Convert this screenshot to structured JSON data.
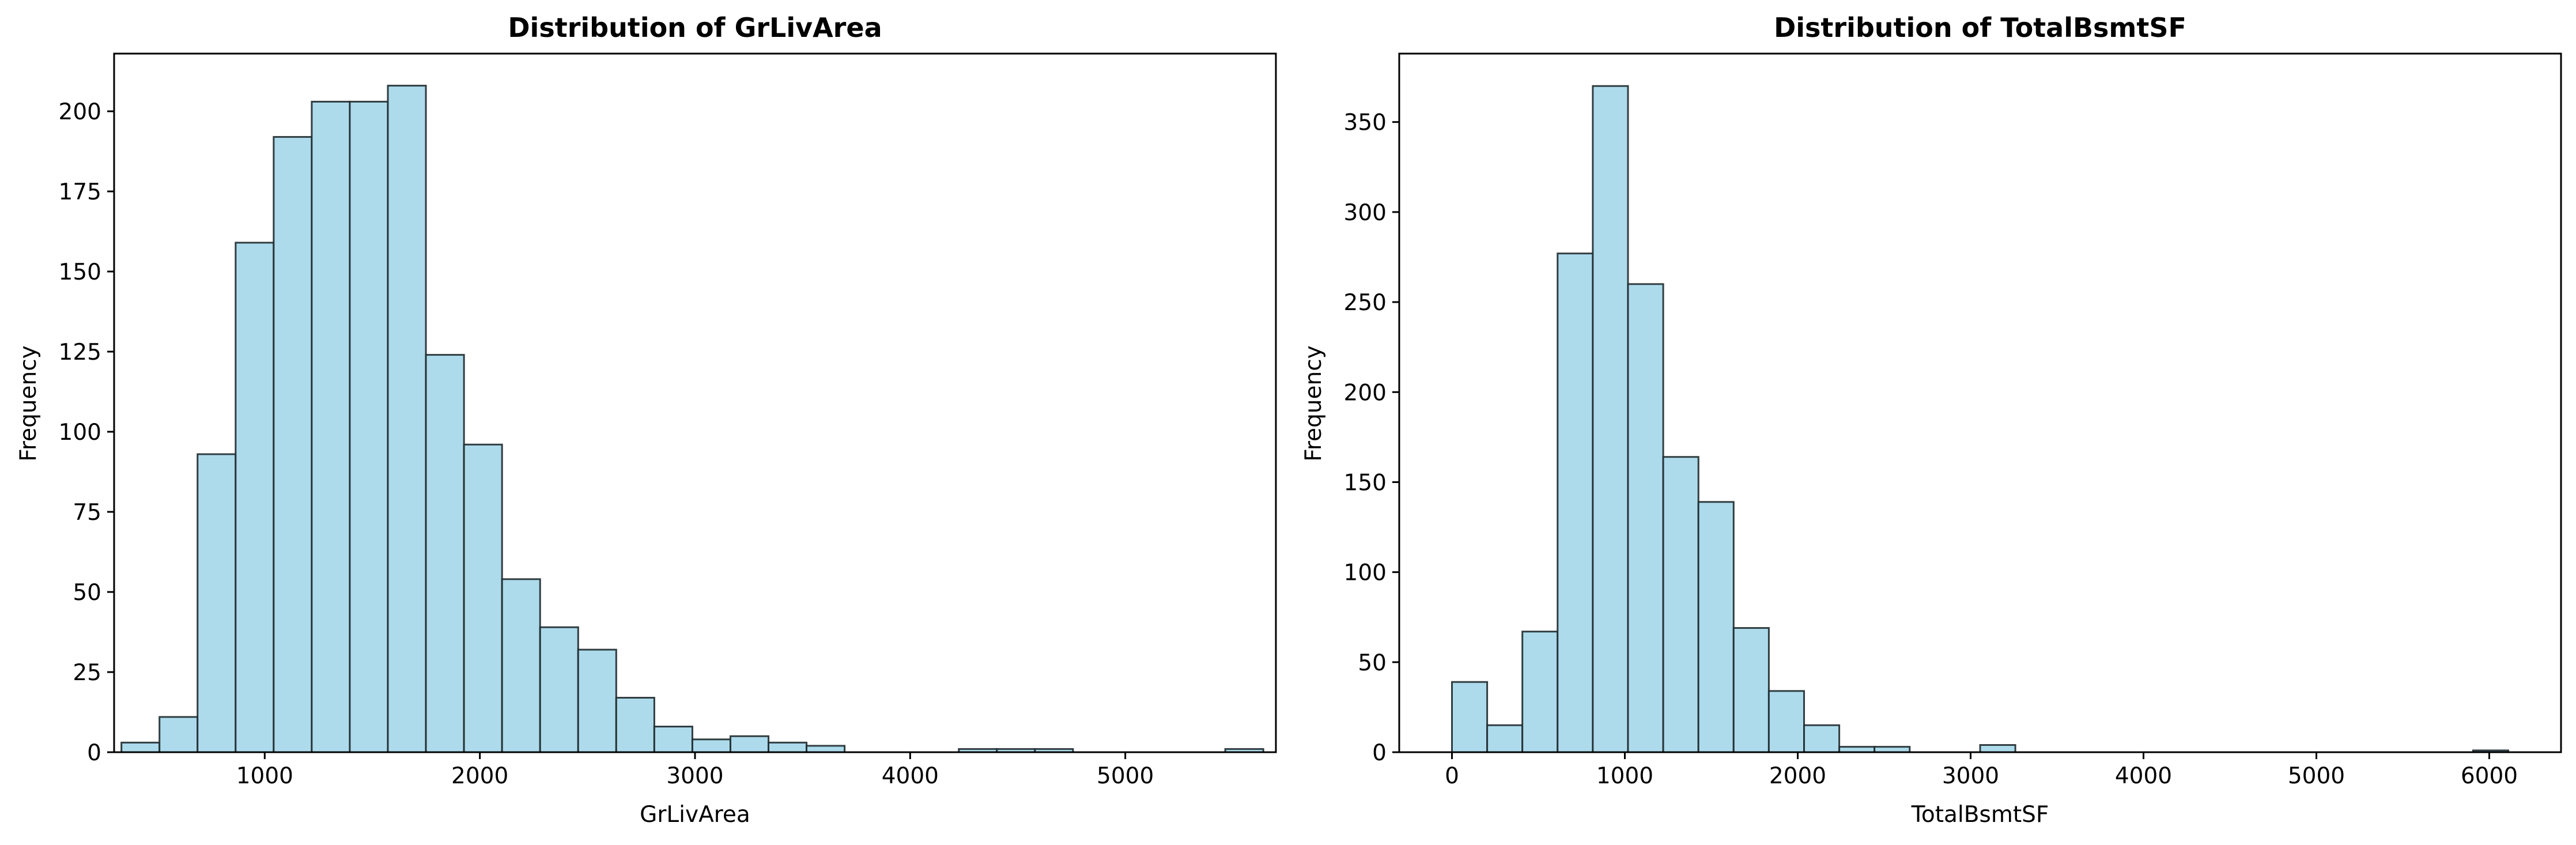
{
  "colors": {
    "bar_fill": "#ADDBEC",
    "bar_edge": "#1f2a2e",
    "axis": "#000000",
    "background": "#ffffff"
  },
  "chart_data": [
    {
      "type": "bar",
      "title": "Distribution of GrLivArea",
      "xlabel": "GrLivArea",
      "ylabel": "Frequency",
      "xlim": [
        300,
        5700
      ],
      "ylim": [
        0,
        218
      ],
      "xticks": [
        "1000",
        "2000",
        "3000",
        "4000",
        "5000"
      ],
      "yticks": [
        "0",
        "25",
        "50",
        "75",
        "100",
        "125",
        "150",
        "175",
        "200"
      ],
      "grid": false,
      "bin_edges": [
        334,
        510.9,
        687.8,
        864.8,
        1041.7,
        1218.6,
        1395.5,
        1572.4,
        1749.3,
        1926.3,
        2103.2,
        2280.1,
        2457,
        2633.9,
        2810.9,
        2987.8,
        3164.7,
        3341.6,
        3518.5,
        3695.4,
        3872.4,
        4049.3,
        4226.2,
        4403.1,
        4580,
        4756.9,
        4933.9,
        5110.8,
        5287.7,
        5464.6,
        5641.5
      ],
      "values": [
        3,
        11,
        93,
        159,
        192,
        203,
        203,
        208,
        124,
        96,
        54,
        39,
        32,
        17,
        8,
        4,
        5,
        3,
        2,
        0,
        0,
        0,
        1,
        1,
        1,
        0,
        0,
        0,
        0,
        1
      ]
    },
    {
      "type": "bar",
      "title": "Distribution of TotalBsmtSF",
      "xlabel": "TotalBsmtSF",
      "ylabel": "Frequency",
      "xlim": [
        -305,
        6415
      ],
      "ylim": [
        0,
        388
      ],
      "xticks": [
        "0",
        "1000",
        "2000",
        "3000",
        "4000",
        "5000",
        "6000"
      ],
      "yticks": [
        "0",
        "50",
        "100",
        "150",
        "200",
        "250",
        "300",
        "350"
      ],
      "grid": false,
      "bin_edges": [
        0,
        203.7,
        407.3,
        611,
        814.7,
        1018.3,
        1222,
        1425.7,
        1629.3,
        1833,
        2036.7,
        2240.3,
        2444,
        2647.7,
        2851.3,
        3055,
        3258.7,
        3462.3,
        3666,
        3869.7,
        4073.3,
        4277,
        4480.7,
        4684.3,
        4888,
        5091.7,
        5295.3,
        5499,
        5702.7,
        5906.3,
        6110
      ],
      "values": [
        39,
        15,
        67,
        277,
        370,
        260,
        164,
        139,
        69,
        34,
        15,
        3,
        3,
        0,
        0,
        4,
        0,
        0,
        0,
        0,
        0,
        0,
        0,
        0,
        0,
        0,
        0,
        0,
        0,
        1
      ]
    }
  ]
}
